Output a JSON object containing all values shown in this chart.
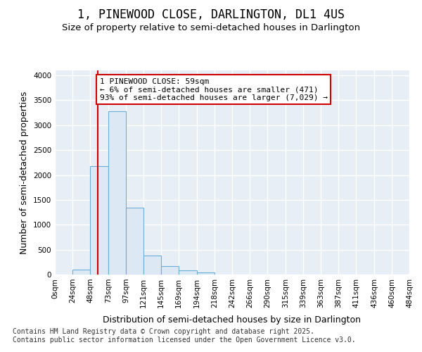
{
  "title_line1": "1, PINEWOOD CLOSE, DARLINGTON, DL1 4US",
  "title_line2": "Size of property relative to semi-detached houses in Darlington",
  "xlabel": "Distribution of semi-detached houses by size in Darlington",
  "ylabel": "Number of semi-detached properties",
  "footnote": "Contains HM Land Registry data © Crown copyright and database right 2025.\nContains public sector information licensed under the Open Government Licence v3.0.",
  "bin_edges": [
    0,
    24,
    48,
    73,
    97,
    121,
    145,
    169,
    194,
    218,
    242,
    266,
    290,
    315,
    339,
    363,
    387,
    411,
    436,
    460,
    484
  ],
  "bar_heights": [
    0,
    100,
    2175,
    3275,
    1350,
    375,
    165,
    90,
    40,
    0,
    0,
    0,
    0,
    0,
    0,
    0,
    0,
    0,
    0,
    0
  ],
  "bar_color": "#dce9f5",
  "bar_edge_color": "#6baed6",
  "property_size": 59,
  "annotation_text": "1 PINEWOOD CLOSE: 59sqm\n← 6% of semi-detached houses are smaller (471)\n93% of semi-detached houses are larger (7,029) →",
  "vline_color": "#cc0000",
  "annotation_box_edge_color": "#cc0000",
  "annotation_box_face_color": "#ffffff",
  "ylim": [
    0,
    4100
  ],
  "xlim": [
    0,
    484
  ],
  "yticks": [
    0,
    500,
    1000,
    1500,
    2000,
    2500,
    3000,
    3500,
    4000
  ],
  "xtick_labels": [
    "0sqm",
    "24sqm",
    "48sqm",
    "73sqm",
    "97sqm",
    "121sqm",
    "145sqm",
    "169sqm",
    "194sqm",
    "218sqm",
    "242sqm",
    "266sqm",
    "290sqm",
    "315sqm",
    "339sqm",
    "363sqm",
    "387sqm",
    "411sqm",
    "436sqm",
    "460sqm",
    "484sqm"
  ],
  "bg_color": "#ffffff",
  "plot_bg_color": "#e8eef5",
  "grid_color": "#ffffff",
  "title_fontsize": 12,
  "subtitle_fontsize": 9.5,
  "axis_label_fontsize": 9,
  "tick_fontsize": 7.5,
  "footnote_fontsize": 7,
  "annotation_fontsize": 8
}
